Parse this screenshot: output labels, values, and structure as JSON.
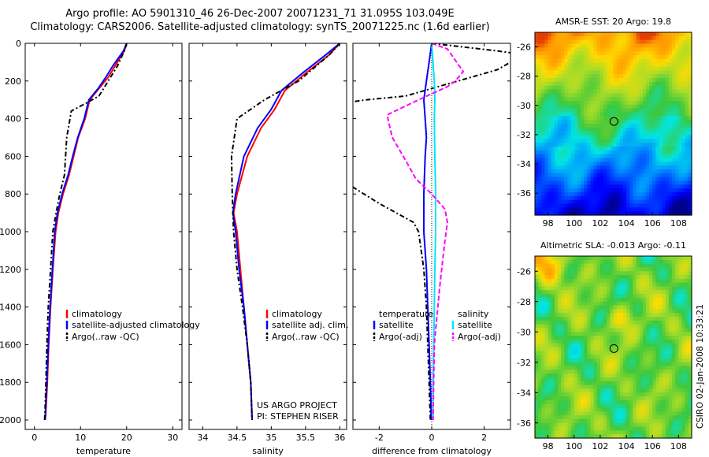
{
  "header": {
    "line1": "Argo profile: AO 5901310_46 26-Dec-2007 20071231_71 31.095S 103.049E",
    "line2": "Climatology: CARS2006. Satellite-adjusted climatology: synTS_20071225.nc (1.6d earlier)"
  },
  "colors": {
    "clim": "#ff0000",
    "sat": "#0000ff",
    "argo": "#000000",
    "sat_sal_diff": "#00e5ff",
    "argo_sal_diff": "#ff00ff"
  },
  "chart_data": [
    {
      "type": "line",
      "xlabel": "temperature",
      "ylabel": "",
      "xlim": [
        -2,
        32
      ],
      "ylim": [
        2050,
        0
      ],
      "xticks": [
        0,
        10,
        20,
        30
      ],
      "yticks": [
        0,
        200,
        400,
        600,
        800,
        1000,
        1200,
        1400,
        1600,
        1800,
        2000
      ],
      "legend": [
        "climatology",
        "satellite-adjusted climatology",
        "Argo(..raw -QC)"
      ],
      "series": [
        {
          "name": "climatology",
          "color": "clim",
          "dash": "",
          "x": [
            20,
            19.5,
            17.5,
            16,
            14,
            12,
            11,
            9.5,
            8.5,
            7.5,
            6.2,
            5.2,
            4.6,
            4,
            3.5,
            3.1,
            2.8,
            2.6,
            2.4,
            2.3
          ],
          "y": [
            0,
            40,
            120,
            180,
            240,
            300,
            400,
            500,
            600,
            700,
            800,
            900,
            1000,
            1200,
            1400,
            1600,
            1800,
            1900,
            1980,
            2000
          ]
        },
        {
          "name": "satellite-adjusted climatology",
          "color": "sat",
          "dash": "",
          "x": [
            20,
            19.3,
            17,
            15.5,
            13.8,
            11.8,
            10.8,
            9.4,
            8.3,
            7.3,
            6,
            5,
            4.4,
            3.9,
            3.4,
            3,
            2.7,
            2.5,
            2.35,
            2.3
          ],
          "y": [
            0,
            40,
            120,
            180,
            240,
            300,
            400,
            500,
            600,
            700,
            800,
            900,
            1000,
            1200,
            1400,
            1600,
            1800,
            1900,
            1980,
            2000
          ]
        },
        {
          "name": "Argo(..raw -QC)",
          "color": "argo",
          "dash": "6,3,2,3",
          "x": [
            20,
            19.5,
            18,
            16,
            14,
            11,
            8,
            7,
            6.5,
            5.5,
            4.7,
            4,
            3.5,
            3,
            2.7,
            2.5,
            2.3,
            2.2
          ],
          "y": [
            0,
            40,
            120,
            200,
            280,
            320,
            360,
            500,
            700,
            800,
            900,
            1000,
            1200,
            1400,
            1600,
            1800,
            1950,
            2000
          ]
        }
      ]
    },
    {
      "type": "line",
      "xlabel": "salinity",
      "ylabel": "",
      "xlim": [
        33.8,
        36.1
      ],
      "ylim": [
        2050,
        0
      ],
      "xticks": [
        34,
        34.5,
        35,
        35.5,
        36
      ],
      "legend": [
        "climatology",
        "satellite adj. clim.",
        "Argo(..raw -QC)"
      ],
      "annotation": [
        "US ARGO PROJECT",
        "PI: STEPHEN RISER"
      ],
      "series": [
        {
          "name": "climatology",
          "color": "clim",
          "dash": "",
          "x": [
            36.0,
            35.85,
            35.5,
            35.2,
            35.05,
            34.85,
            34.65,
            34.5,
            34.45,
            34.5,
            34.55,
            34.6,
            34.65,
            34.7,
            34.72
          ],
          "y": [
            0,
            60,
            160,
            250,
            350,
            450,
            600,
            800,
            900,
            1000,
            1200,
            1400,
            1600,
            1800,
            2000
          ]
        },
        {
          "name": "satellite adj. clim.",
          "color": "sat",
          "dash": "",
          "x": [
            36.0,
            35.8,
            35.45,
            35.15,
            35.0,
            34.8,
            34.6,
            34.48,
            34.44,
            34.48,
            34.53,
            34.6,
            34.65,
            34.7,
            34.72
          ],
          "y": [
            0,
            60,
            160,
            250,
            350,
            450,
            600,
            800,
            900,
            1000,
            1200,
            1400,
            1600,
            1800,
            2000
          ]
        },
        {
          "name": "Argo(..raw -QC)",
          "color": "argo",
          "dash": "6,3,2,3",
          "x": [
            36.0,
            35.85,
            35.4,
            34.9,
            34.5,
            34.42,
            34.43,
            34.45,
            34.5,
            34.58,
            34.65,
            34.7,
            34.72
          ],
          "y": [
            0,
            60,
            200,
            300,
            400,
            600,
            800,
            1000,
            1200,
            1400,
            1600,
            1800,
            2000
          ]
        }
      ]
    },
    {
      "type": "line",
      "xlabel": "difference from climatology",
      "ylabel": "",
      "xlim": [
        -3,
        3
      ],
      "ylim": [
        2050,
        0
      ],
      "xticks": [
        -2,
        0,
        2
      ],
      "legend": [
        "temperature",
        "satellite",
        "Argo(-adj)",
        "salinity",
        "satellite",
        "Argo(-adj)"
      ],
      "series": [
        {
          "name": "satellite",
          "color": "sat",
          "dash": "",
          "x": [
            0,
            -0.1,
            -0.2,
            -0.3,
            -0.25,
            -0.2,
            -0.25,
            -0.3,
            -0.3,
            -0.2,
            -0.15,
            -0.1,
            -0.05,
            -0.03,
            -0.02
          ],
          "y": [
            0,
            100,
            200,
            300,
            400,
            500,
            600,
            800,
            1000,
            1200,
            1400,
            1600,
            1800,
            1900,
            2000
          ]
        },
        {
          "name": "Argo(-adj)",
          "color": "argo",
          "dash": "6,3,2,3",
          "x": [
            0,
            2.5,
            3.5,
            2.5,
            1,
            -1,
            -2.5,
            -3.5,
            -3.5,
            -2,
            -0.7,
            -0.5,
            -0.3,
            -0.2,
            -0.1,
            -0.05
          ],
          "y": [
            0,
            40,
            60,
            140,
            200,
            280,
            300,
            320,
            720,
            850,
            950,
            1000,
            1200,
            1400,
            1800,
            2000
          ]
        },
        {
          "name": "satellite",
          "color": "sat_sal_diff",
          "dash": "",
          "x": [
            0,
            0.05,
            0.1,
            0.12,
            0.1,
            0.12,
            0.15,
            0.15,
            0.12,
            0.1,
            0.08,
            0.06,
            0.05
          ],
          "y": [
            0,
            100,
            200,
            300,
            400,
            600,
            800,
            1000,
            1200,
            1400,
            1600,
            1800,
            2000
          ]
        },
        {
          "name": "Argo(-adj)",
          "color": "argo_sal_diff",
          "dash": "6,3",
          "x": [
            0,
            0.6,
            1.2,
            0.9,
            0.6,
            -0.5,
            -1.7,
            -1.5,
            -1.0,
            -0.6,
            0,
            0.5,
            0.6,
            0.5,
            0.3,
            0.1,
            0.05
          ],
          "y": [
            0,
            30,
            150,
            200,
            230,
            300,
            380,
            500,
            620,
            720,
            800,
            880,
            950,
            1050,
            1300,
            1600,
            2000
          ]
        }
      ]
    },
    {
      "type": "heatmap",
      "title": "AMSR-E SST: 20 Argo: 19.8",
      "xlim": [
        97,
        109
      ],
      "ylim": [
        -37.5,
        -25
      ],
      "xticks": [
        98,
        100,
        102,
        104,
        106,
        108
      ],
      "yticks": [
        -26,
        -28,
        -30,
        -32,
        -34,
        -36
      ],
      "marker": {
        "x": 103.049,
        "y": -31.095
      }
    },
    {
      "type": "heatmap",
      "title": "Altimetric SLA: -0.013 Argo: -0.11",
      "xlim": [
        97,
        109
      ],
      "ylim": [
        -37,
        -25
      ],
      "xticks": [
        98,
        100,
        102,
        104,
        106,
        108
      ],
      "yticks": [
        -26,
        -28,
        -30,
        -32,
        -34,
        -36
      ],
      "marker": {
        "x": 103.049,
        "y": -31.095
      }
    }
  ],
  "footer": {
    "credit": "CSIRO 02-Jan-2008 10:33:21"
  }
}
